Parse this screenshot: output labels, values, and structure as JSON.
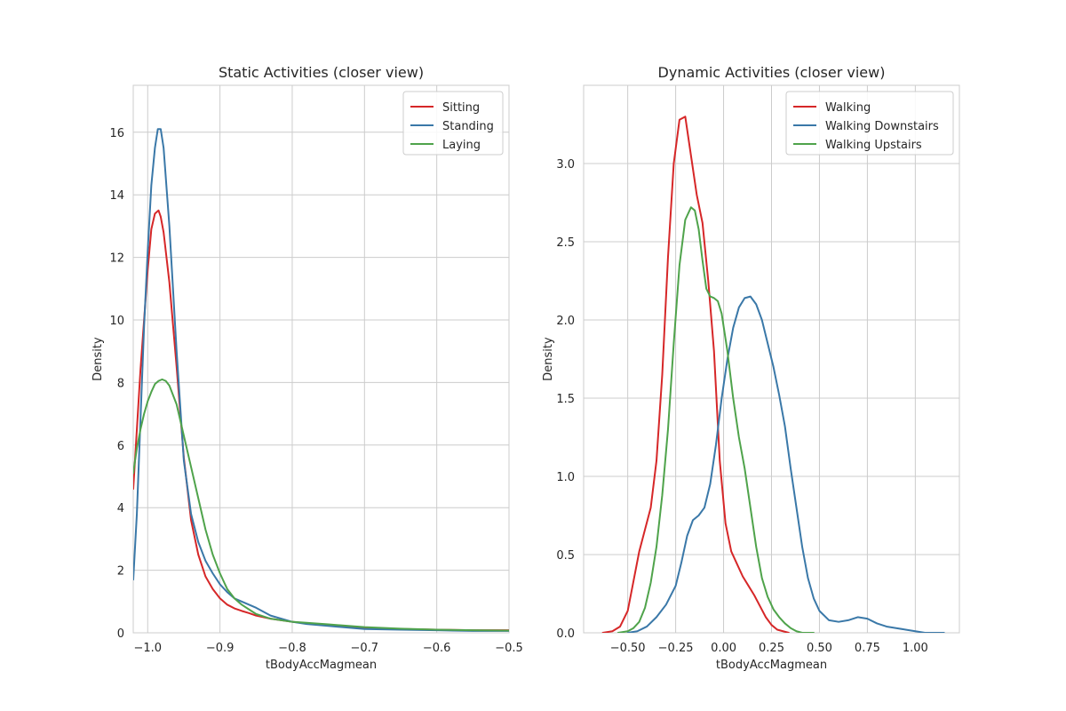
{
  "chart_data": [
    {
      "type": "line",
      "title": "Static Activities (closer view)",
      "xlabel": "tBodyAccMagmean",
      "ylabel": "Density",
      "xlim": [
        -1.02,
        -0.5
      ],
      "ylim": [
        0,
        17.5
      ],
      "xticks": [
        -1.0,
        -0.9,
        -0.8,
        -0.7,
        -0.6,
        -0.5
      ],
      "xtick_labels": [
        "−1.0",
        "−0.9",
        "−0.8",
        "−0.7",
        "−0.6",
        "−0.5"
      ],
      "yticks": [
        0,
        2,
        4,
        6,
        8,
        10,
        12,
        14,
        16
      ],
      "ytick_labels": [
        "0",
        "2",
        "4",
        "6",
        "8",
        "10",
        "12",
        "14",
        "16"
      ],
      "grid": true,
      "legend": "top-right",
      "series": [
        {
          "name": "Sitting",
          "color": "#d62728",
          "x": [
            -1.02,
            -1.015,
            -1.01,
            -1.005,
            -1.0,
            -0.995,
            -0.99,
            -0.985,
            -0.982,
            -0.978,
            -0.97,
            -0.96,
            -0.95,
            -0.94,
            -0.93,
            -0.92,
            -0.91,
            -0.9,
            -0.89,
            -0.88,
            -0.87,
            -0.86,
            -0.85,
            -0.83,
            -0.8,
            -0.78,
            -0.75,
            -0.7,
            -0.65,
            -0.6,
            -0.55,
            -0.5
          ],
          "y": [
            4.6,
            6.5,
            8.4,
            10.0,
            11.6,
            12.9,
            13.4,
            13.5,
            13.3,
            12.8,
            11.2,
            8.5,
            5.6,
            3.6,
            2.5,
            1.8,
            1.4,
            1.1,
            0.9,
            0.78,
            0.7,
            0.63,
            0.55,
            0.45,
            0.35,
            0.3,
            0.25,
            0.15,
            0.12,
            0.1,
            0.08,
            0.08
          ]
        },
        {
          "name": "Standing",
          "color": "#3a78a8",
          "x": [
            -1.02,
            -1.015,
            -1.01,
            -1.005,
            -1.0,
            -0.995,
            -0.99,
            -0.986,
            -0.982,
            -0.978,
            -0.97,
            -0.96,
            -0.95,
            -0.94,
            -0.93,
            -0.92,
            -0.91,
            -0.9,
            -0.89,
            -0.88,
            -0.87,
            -0.86,
            -0.85,
            -0.83,
            -0.8,
            -0.78,
            -0.75,
            -0.7,
            -0.65,
            -0.6,
            -0.55,
            -0.5
          ],
          "y": [
            1.7,
            3.8,
            6.8,
            9.8,
            12.2,
            14.3,
            15.5,
            16.1,
            16.1,
            15.5,
            13.0,
            9.0,
            5.5,
            3.8,
            2.9,
            2.3,
            1.9,
            1.55,
            1.3,
            1.1,
            1.0,
            0.9,
            0.8,
            0.55,
            0.35,
            0.28,
            0.22,
            0.12,
            0.1,
            0.08,
            0.06,
            0.06
          ]
        },
        {
          "name": "Laying",
          "color": "#4fa34b",
          "x": [
            -1.02,
            -1.015,
            -1.01,
            -1.005,
            -1.0,
            -0.995,
            -0.99,
            -0.985,
            -0.98,
            -0.975,
            -0.97,
            -0.96,
            -0.95,
            -0.94,
            -0.93,
            -0.92,
            -0.91,
            -0.9,
            -0.89,
            -0.88,
            -0.87,
            -0.86,
            -0.85,
            -0.83,
            -0.8,
            -0.78,
            -0.75,
            -0.7,
            -0.65,
            -0.6,
            -0.55,
            -0.5
          ],
          "y": [
            5.1,
            5.9,
            6.5,
            7.0,
            7.4,
            7.7,
            7.95,
            8.05,
            8.1,
            8.05,
            7.9,
            7.3,
            6.3,
            5.3,
            4.3,
            3.3,
            2.5,
            1.9,
            1.4,
            1.1,
            0.9,
            0.75,
            0.6,
            0.45,
            0.35,
            0.32,
            0.27,
            0.18,
            0.13,
            0.1,
            0.08,
            0.07
          ]
        }
      ]
    },
    {
      "type": "line",
      "title": "Dynamic Activities (closer view)",
      "xlabel": "tBodyAccMagmean",
      "ylabel": "Density",
      "xlim": [
        -0.73,
        1.23
      ],
      "ylim": [
        0,
        3.5
      ],
      "xticks": [
        -0.5,
        -0.25,
        0.0,
        0.25,
        0.5,
        0.75,
        1.0
      ],
      "xtick_labels": [
        "−0.50",
        "−0.25",
        "0.00",
        "0.25",
        "0.50",
        "0.75",
        "1.00"
      ],
      "yticks": [
        0.0,
        0.5,
        1.0,
        1.5,
        2.0,
        2.5,
        3.0
      ],
      "ytick_labels": [
        "0.0",
        "0.5",
        "1.0",
        "1.5",
        "2.0",
        "2.5",
        "3.0"
      ],
      "grid": true,
      "legend": "top-right",
      "series": [
        {
          "name": "Walking",
          "color": "#d62728",
          "x": [
            -0.63,
            -0.58,
            -0.54,
            -0.5,
            -0.47,
            -0.44,
            -0.41,
            -0.38,
            -0.35,
            -0.32,
            -0.29,
            -0.26,
            -0.23,
            -0.2,
            -0.17,
            -0.14,
            -0.11,
            -0.08,
            -0.05,
            -0.02,
            0.01,
            0.04,
            0.07,
            0.1,
            0.13,
            0.16,
            0.19,
            0.22,
            0.25,
            0.28,
            0.31,
            0.34
          ],
          "y": [
            0.0,
            0.01,
            0.04,
            0.14,
            0.33,
            0.52,
            0.66,
            0.8,
            1.1,
            1.65,
            2.4,
            3.0,
            3.28,
            3.3,
            3.05,
            2.8,
            2.62,
            2.25,
            1.8,
            1.1,
            0.7,
            0.52,
            0.44,
            0.36,
            0.3,
            0.24,
            0.17,
            0.1,
            0.05,
            0.02,
            0.01,
            0.0
          ]
        },
        {
          "name": "Walking Downstairs",
          "color": "#3a78a8",
          "x": [
            -0.5,
            -0.45,
            -0.4,
            -0.35,
            -0.3,
            -0.25,
            -0.22,
            -0.19,
            -0.16,
            -0.13,
            -0.1,
            -0.07,
            -0.04,
            -0.01,
            0.02,
            0.05,
            0.08,
            0.11,
            0.14,
            0.17,
            0.2,
            0.23,
            0.26,
            0.29,
            0.32,
            0.35,
            0.38,
            0.41,
            0.44,
            0.47,
            0.5,
            0.55,
            0.6,
            0.65,
            0.7,
            0.75,
            0.8,
            0.85,
            0.9,
            0.95,
            1.0,
            1.05,
            1.1,
            1.15
          ],
          "y": [
            0.0,
            0.01,
            0.04,
            0.1,
            0.18,
            0.3,
            0.45,
            0.62,
            0.72,
            0.75,
            0.8,
            0.95,
            1.2,
            1.5,
            1.75,
            1.95,
            2.08,
            2.14,
            2.15,
            2.1,
            2.0,
            1.85,
            1.7,
            1.52,
            1.32,
            1.05,
            0.8,
            0.55,
            0.35,
            0.22,
            0.14,
            0.08,
            0.07,
            0.08,
            0.1,
            0.09,
            0.06,
            0.04,
            0.03,
            0.02,
            0.01,
            0.0,
            0.0,
            0.0
          ]
        },
        {
          "name": "Walking Upstairs",
          "color": "#4fa34b",
          "x": [
            -0.55,
            -0.5,
            -0.47,
            -0.44,
            -0.41,
            -0.38,
            -0.35,
            -0.32,
            -0.29,
            -0.26,
            -0.23,
            -0.2,
            -0.17,
            -0.15,
            -0.13,
            -0.11,
            -0.09,
            -0.07,
            -0.05,
            -0.03,
            -0.01,
            0.02,
            0.05,
            0.08,
            0.11,
            0.14,
            0.17,
            0.2,
            0.23,
            0.26,
            0.29,
            0.32,
            0.35,
            0.38,
            0.41,
            0.44,
            0.47
          ],
          "y": [
            0.0,
            0.01,
            0.03,
            0.07,
            0.16,
            0.32,
            0.55,
            0.88,
            1.3,
            1.85,
            2.35,
            2.64,
            2.72,
            2.7,
            2.58,
            2.38,
            2.2,
            2.15,
            2.14,
            2.12,
            2.04,
            1.8,
            1.5,
            1.25,
            1.05,
            0.8,
            0.55,
            0.35,
            0.23,
            0.15,
            0.1,
            0.06,
            0.03,
            0.01,
            0.0,
            0.0,
            0.0
          ]
        }
      ]
    }
  ]
}
